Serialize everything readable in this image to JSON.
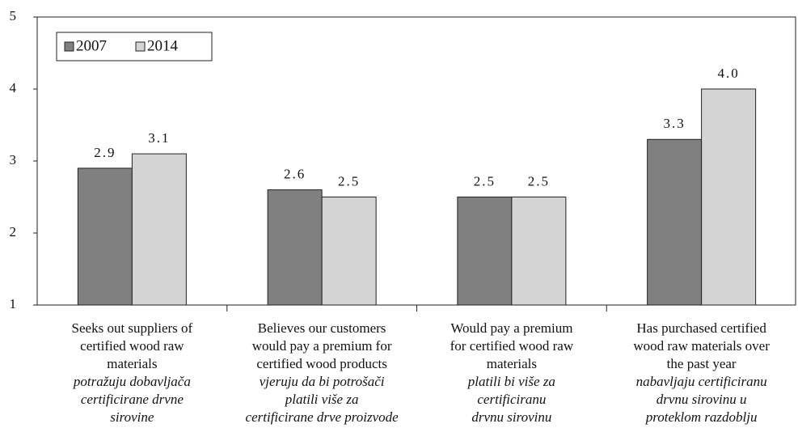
{
  "chart_data": {
    "type": "bar",
    "categories": [
      {
        "label": [
          "Seeks out suppliers of",
          "certified wood raw",
          "materials"
        ],
        "translation": [
          "potražuju dobavljača",
          "certificirane drvne",
          "sirovine"
        ]
      },
      {
        "label": [
          "Believes our customers",
          "would pay a premium for",
          "certified wood products"
        ],
        "translation": [
          "vjeruju da bi potrošači",
          "platili više za",
          "certificirane drve proizvode"
        ]
      },
      {
        "label": [
          "Would pay a premium",
          "for certified wood raw",
          "materials"
        ],
        "translation": [
          "platili bi više za",
          "certificiranu",
          "drvnu sirovinu"
        ]
      },
      {
        "label": [
          "Has purchased certified",
          "wood raw materials over",
          "the past year"
        ],
        "translation": [
          "nabavljaju certificiranu",
          "drvnu sirovinu u",
          "proteklom razdoblju"
        ]
      }
    ],
    "series": [
      {
        "name": "2007",
        "color": "#808080",
        "values": [
          2.9,
          2.6,
          2.5,
          3.3
        ],
        "value_labels": [
          "2.9",
          "2.6",
          "2.5",
          "3.3"
        ]
      },
      {
        "name": "2014",
        "color": "#d4d4d4",
        "values": [
          3.1,
          2.5,
          2.5,
          4.0
        ],
        "value_labels": [
          "3.1",
          "2.5",
          "2.5",
          "4.0"
        ]
      }
    ],
    "ylim": [
      1,
      5
    ],
    "yticks": [
      1,
      2,
      3,
      4,
      5
    ],
    "grid": false,
    "legend": "top-left"
  }
}
